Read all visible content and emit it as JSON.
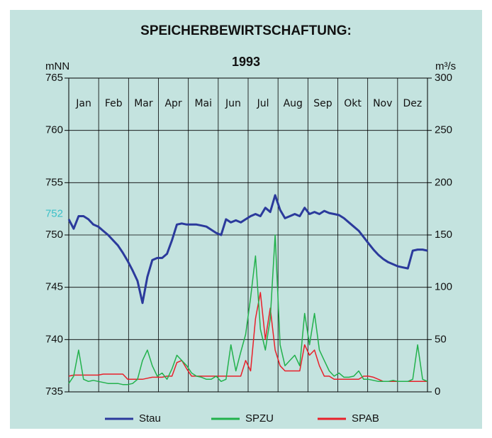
{
  "chart_data": {
    "type": "line",
    "title": "SPEICHERBEWIRTSCHAFTUNG:",
    "subtitle": "1993",
    "ylabel": "mNN",
    "y2label": "m³/s",
    "categories": [
      "Jan",
      "Feb",
      "Mar",
      "Apr",
      "Mai",
      "Jun",
      "Jul",
      "Aug",
      "Sep",
      "Okt",
      "Nov",
      "Dez"
    ],
    "x": [
      0,
      5,
      10,
      15,
      20,
      25,
      30,
      35,
      40,
      45,
      50,
      55,
      60,
      65,
      70,
      75,
      80,
      85,
      90,
      95,
      100,
      105,
      110,
      115,
      120,
      125,
      130,
      135,
      140,
      145,
      150,
      155,
      160,
      165,
      170,
      175,
      180,
      185,
      190,
      195,
      200,
      205,
      210,
      215,
      220,
      225,
      230,
      235,
      240,
      245,
      250,
      255,
      260,
      265,
      270,
      275,
      280,
      285,
      290,
      295,
      300,
      305,
      310,
      315,
      320,
      325,
      330,
      335,
      340,
      345,
      350,
      355,
      360,
      365
    ],
    "xlim": [
      0,
      365
    ],
    "ylim": [
      735,
      765
    ],
    "yticks": [
      735,
      740,
      745,
      750,
      755,
      760,
      765
    ],
    "y2lim": [
      0,
      300
    ],
    "y2ticks": [
      0,
      50,
      100,
      150,
      200,
      250,
      300
    ],
    "highlight_tick": {
      "value": 752,
      "color": "#3cc0c8"
    },
    "grid": true,
    "legend": "bottom",
    "series": [
      {
        "name": "Stau",
        "color": "#2b3a9c",
        "axis": "y",
        "values": [
          751.5,
          750.6,
          751.8,
          751.8,
          751.5,
          751.0,
          750.8,
          750.4,
          750.0,
          749.5,
          749.0,
          748.3,
          747.5,
          746.6,
          745.6,
          743.5,
          746.0,
          747.6,
          747.8,
          747.8,
          748.2,
          749.5,
          751.0,
          751.1,
          751.0,
          751.0,
          751.0,
          750.9,
          750.8,
          750.5,
          750.2,
          750.0,
          751.5,
          751.2,
          751.4,
          751.2,
          751.5,
          751.8,
          752.0,
          751.8,
          752.6,
          752.2,
          753.8,
          752.4,
          751.6,
          751.8,
          752.0,
          751.8,
          752.6,
          752.0,
          752.2,
          752.0,
          752.3,
          752.1,
          752.0,
          751.9,
          751.6,
          751.2,
          750.8,
          750.4,
          749.8,
          749.2,
          748.6,
          748.1,
          747.7,
          747.4,
          747.2,
          747.0,
          746.9,
          746.8,
          748.5,
          748.6,
          748.6,
          748.5
        ]
      },
      {
        "name": "SPZU",
        "color": "#22b14c",
        "axis": "y2",
        "values": [
          8,
          15,
          40,
          12,
          10,
          11,
          10,
          9,
          8,
          8,
          8,
          7,
          7,
          8,
          12,
          30,
          40,
          25,
          15,
          18,
          12,
          22,
          35,
          30,
          25,
          18,
          15,
          14,
          12,
          12,
          15,
          10,
          12,
          45,
          20,
          38,
          55,
          90,
          130,
          60,
          40,
          70,
          150,
          45,
          25,
          30,
          35,
          25,
          75,
          45,
          75,
          40,
          30,
          20,
          15,
          18,
          14,
          14,
          15,
          20,
          12,
          12,
          11,
          10,
          10,
          10,
          11,
          10,
          10,
          10,
          12,
          45,
          12,
          10
        ]
      },
      {
        "name": "SPAB",
        "color": "#e8202a",
        "axis": "y2",
        "values": [
          15,
          16,
          16,
          16,
          16,
          16,
          16,
          17,
          17,
          17,
          17,
          17,
          12,
          12,
          12,
          12,
          13,
          14,
          14,
          14,
          15,
          15,
          28,
          30,
          22,
          15,
          15,
          15,
          15,
          15,
          15,
          15,
          15,
          15,
          15,
          15,
          30,
          20,
          70,
          95,
          50,
          80,
          40,
          25,
          20,
          20,
          20,
          20,
          45,
          35,
          40,
          25,
          15,
          15,
          12,
          12,
          12,
          12,
          12,
          12,
          15,
          15,
          14,
          12,
          10,
          10,
          10,
          10,
          10,
          10,
          10,
          10,
          10,
          10
        ]
      }
    ]
  }
}
